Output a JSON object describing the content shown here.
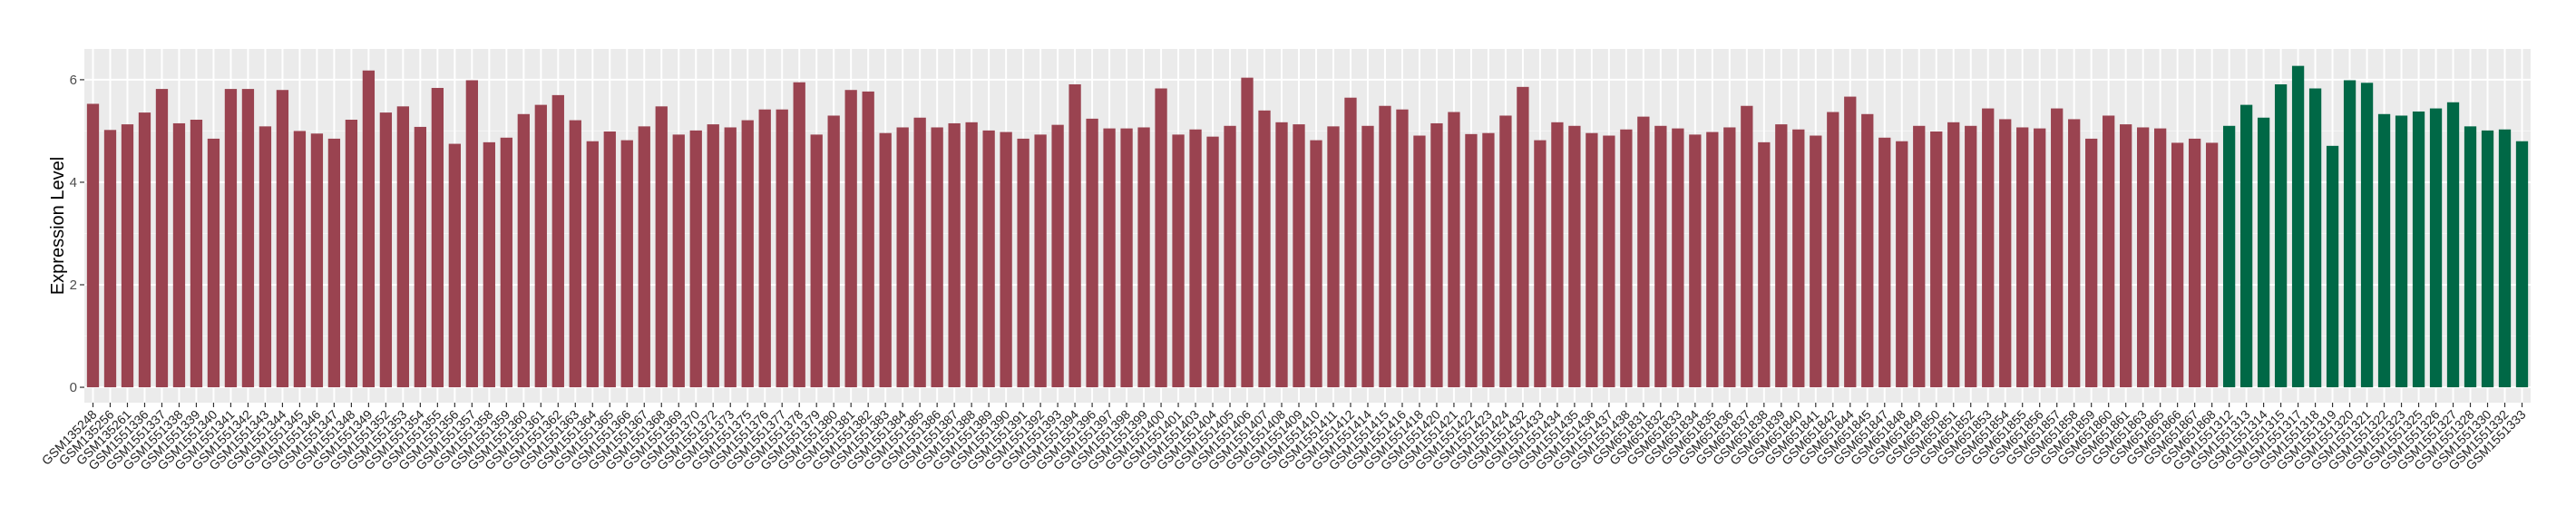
{
  "chart_data": {
    "type": "bar",
    "title": "",
    "xlabel": "",
    "ylabel": "Expression Level",
    "ylim": [
      -0.3,
      6.6
    ],
    "yticks": [
      0,
      2,
      4,
      6
    ],
    "grid": true,
    "legend": "none",
    "colors": {
      "group1": "#9A4350",
      "group2": "#006846",
      "panel": "#EBEBEB",
      "grid": "#FFFFFF"
    },
    "categories": [
      "GSM135248",
      "GSM135256",
      "GSM135261",
      "GSM1551336",
      "GSM1551337",
      "GSM1551338",
      "GSM1551339",
      "GSM1551340",
      "GSM1551341",
      "GSM1551342",
      "GSM1551343",
      "GSM1551344",
      "GSM1551345",
      "GSM1551346",
      "GSM1551347",
      "GSM1551348",
      "GSM1551349",
      "GSM1551352",
      "GSM1551353",
      "GSM1551354",
      "GSM1551355",
      "GSM1551356",
      "GSM1551357",
      "GSM1551358",
      "GSM1551359",
      "GSM1551360",
      "GSM1551361",
      "GSM1551362",
      "GSM1551363",
      "GSM1551364",
      "GSM1551365",
      "GSM1551366",
      "GSM1551367",
      "GSM1551368",
      "GSM1551369",
      "GSM1551370",
      "GSM1551372",
      "GSM1551373",
      "GSM1551375",
      "GSM1551376",
      "GSM1551377",
      "GSM1551378",
      "GSM1551379",
      "GSM1551380",
      "GSM1551381",
      "GSM1551382",
      "GSM1551383",
      "GSM1551384",
      "GSM1551385",
      "GSM1551386",
      "GSM1551387",
      "GSM1551388",
      "GSM1551389",
      "GSM1551390",
      "GSM1551391",
      "GSM1551392",
      "GSM1551393",
      "GSM1551394",
      "GSM1551396",
      "GSM1551397",
      "GSM1551398",
      "GSM1551399",
      "GSM1551400",
      "GSM1551401",
      "GSM1551403",
      "GSM1551404",
      "GSM1551405",
      "GSM1551406",
      "GSM1551407",
      "GSM1551408",
      "GSM1551409",
      "GSM1551410",
      "GSM1551411",
      "GSM1551412",
      "GSM1551414",
      "GSM1551415",
      "GSM1551416",
      "GSM1551418",
      "GSM1551420",
      "GSM1551421",
      "GSM1551422",
      "GSM1551423",
      "GSM1551424",
      "GSM1551432",
      "GSM1551433",
      "GSM1551434",
      "GSM1551435",
      "GSM1551436",
      "GSM1551437",
      "GSM1551438",
      "GSM651831",
      "GSM651832",
      "GSM651833",
      "GSM651834",
      "GSM651835",
      "GSM651836",
      "GSM651837",
      "GSM651838",
      "GSM651839",
      "GSM651840",
      "GSM651841",
      "GSM651842",
      "GSM651844",
      "GSM651845",
      "GSM651847",
      "GSM651848",
      "GSM651849",
      "GSM651850",
      "GSM651851",
      "GSM651852",
      "GSM651853",
      "GSM651854",
      "GSM651855",
      "GSM651856",
      "GSM651857",
      "GSM651858",
      "GSM651859",
      "GSM651860",
      "GSM651861",
      "GSM651863",
      "GSM651865",
      "GSM651866",
      "GSM651867",
      "GSM651868",
      "GSM1551312",
      "GSM1551313",
      "GSM1551314",
      "GSM1551315",
      "GSM1551317",
      "GSM1551318",
      "GSM1551319",
      "GSM1551320",
      "GSM1551321",
      "GSM1551322",
      "GSM1551323",
      "GSM1551325",
      "GSM1551326",
      "GSM1551327",
      "GSM1551328",
      "GSM1551330",
      "GSM1551332",
      "GSM1551333"
    ],
    "values": [
      5.53,
      5.02,
      5.13,
      5.36,
      5.82,
      5.15,
      5.22,
      4.85,
      5.82,
      5.82,
      5.09,
      5.8,
      5.0,
      4.95,
      4.85,
      5.22,
      6.18,
      5.36,
      5.48,
      5.08,
      5.84,
      4.75,
      5.99,
      4.78,
      4.87,
      5.33,
      5.51,
      5.7,
      5.21,
      4.8,
      4.99,
      4.82,
      5.09,
      5.48,
      4.93,
      5.01,
      5.13,
      5.07,
      5.21,
      5.42,
      5.42,
      5.95,
      4.93,
      5.3,
      5.8,
      5.77,
      4.96,
      5.07,
      5.26,
      5.07,
      5.15,
      5.17,
      5.01,
      4.98,
      4.85,
      4.93,
      5.12,
      5.91,
      5.24,
      5.05,
      5.05,
      5.07,
      5.83,
      4.93,
      5.03,
      4.89,
      5.1,
      6.04,
      5.4,
      5.17,
      5.13,
      4.82,
      5.09,
      5.65,
      5.1,
      5.49,
      5.42,
      4.91,
      5.15,
      5.37,
      4.94,
      4.96,
      5.3,
      5.86,
      4.82,
      5.17,
      5.1,
      4.96,
      4.91,
      5.03,
      5.28,
      5.1,
      5.05,
      4.93,
      4.98,
      5.07,
      5.49,
      4.78,
      5.13,
      5.03,
      4.91,
      5.37,
      5.67,
      5.33,
      4.87,
      4.8,
      5.1,
      4.99,
      5.17,
      5.1,
      5.44,
      5.23,
      5.07,
      5.05,
      5.44,
      5.23,
      4.85,
      5.3,
      5.13,
      5.07,
      5.05,
      4.77,
      4.85,
      4.77,
      5.1,
      5.51,
      5.26,
      5.91,
      6.27,
      5.83,
      4.71,
      5.99,
      5.94,
      5.33,
      5.3,
      5.38,
      5.44,
      5.56,
      5.09,
      5.01,
      5.03,
      4.8
    ],
    "groups": [
      "group1",
      "group1",
      "group1",
      "group1",
      "group1",
      "group1",
      "group1",
      "group1",
      "group1",
      "group1",
      "group1",
      "group1",
      "group1",
      "group1",
      "group1",
      "group1",
      "group1",
      "group1",
      "group1",
      "group1",
      "group1",
      "group1",
      "group1",
      "group1",
      "group1",
      "group1",
      "group1",
      "group1",
      "group1",
      "group1",
      "group1",
      "group1",
      "group1",
      "group1",
      "group1",
      "group1",
      "group1",
      "group1",
      "group1",
      "group1",
      "group1",
      "group1",
      "group1",
      "group1",
      "group1",
      "group1",
      "group1",
      "group1",
      "group1",
      "group1",
      "group1",
      "group1",
      "group1",
      "group1",
      "group1",
      "group1",
      "group1",
      "group1",
      "group1",
      "group1",
      "group1",
      "group1",
      "group1",
      "group1",
      "group1",
      "group1",
      "group1",
      "group1",
      "group1",
      "group1",
      "group1",
      "group1",
      "group1",
      "group1",
      "group1",
      "group1",
      "group1",
      "group1",
      "group1",
      "group1",
      "group1",
      "group1",
      "group1",
      "group1",
      "group1",
      "group1",
      "group1",
      "group1",
      "group1",
      "group1",
      "group1",
      "group1",
      "group1",
      "group1",
      "group1",
      "group1",
      "group1",
      "group1",
      "group1",
      "group1",
      "group1",
      "group1",
      "group1",
      "group1",
      "group1",
      "group1",
      "group1",
      "group1",
      "group1",
      "group1",
      "group1",
      "group1",
      "group1",
      "group1",
      "group1",
      "group1",
      "group1",
      "group1",
      "group1",
      "group1",
      "group1",
      "group1",
      "group1",
      "group1",
      "group2",
      "group2",
      "group2",
      "group2",
      "group2",
      "group2",
      "group2",
      "group2",
      "group2",
      "group2",
      "group2",
      "group2",
      "group2",
      "group2",
      "group2",
      "group2",
      "group2",
      "group2"
    ]
  }
}
